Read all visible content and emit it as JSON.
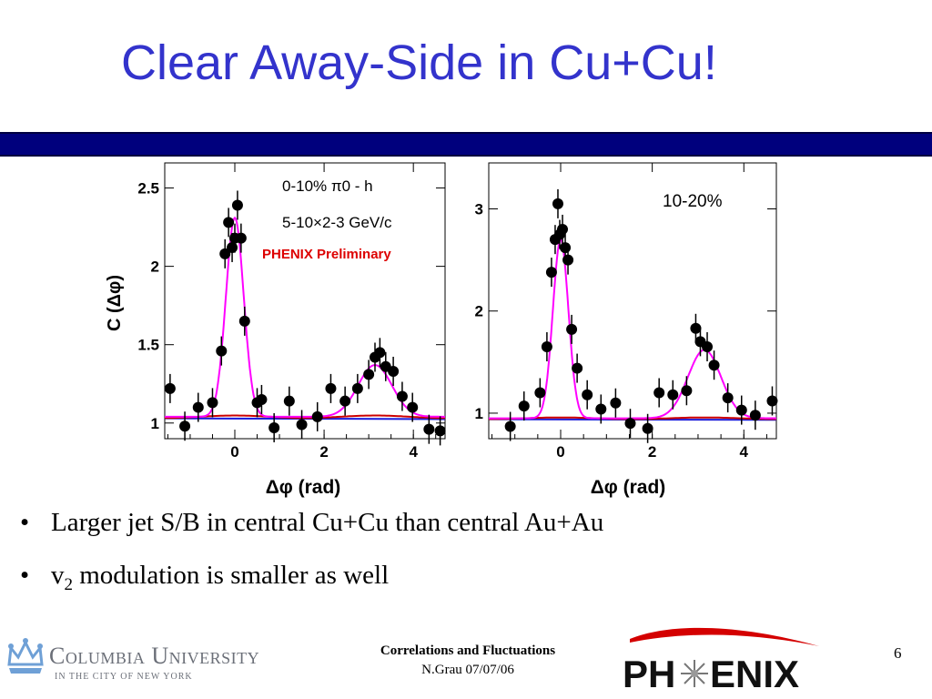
{
  "slide": {
    "title": "Clear Away-Side in Cu+Cu!",
    "bullets": [
      {
        "text": "Larger jet S/B in central Cu+Cu than central Au+Au"
      },
      {
        "text_main": "v",
        "subscript": "2",
        "text_rest": " modulation is smaller as well"
      }
    ],
    "footer": {
      "title": "Correlations and Fluctuations",
      "author_date": "N.Grau 07/07/06",
      "page_number": "6"
    },
    "logos": {
      "columbia": {
        "name_part1": "Columbia",
        "name_part2": "University",
        "tagline": "IN THE CITY OF NEW YORK"
      },
      "phenix": {
        "left": "PH",
        "right": "ENIX"
      }
    },
    "colors": {
      "title": "#3333cc",
      "bar": "#00007d",
      "fit": "#ff00ff",
      "flow": "#cc0000",
      "baseline": "#1a1ad9"
    }
  },
  "chart_data": [
    {
      "type": "scatter",
      "panel": "left",
      "annotations": [
        "0-10%  π0 - h",
        "5-10×2-3 GeV/c",
        "PHENIX Preliminary"
      ],
      "xlabel": "Δφ (rad)",
      "ylabel": "C (Δφ)",
      "xlim": [
        -1.57,
        4.71
      ],
      "ylim": [
        0.9,
        2.66
      ],
      "xticks": [
        0,
        2,
        4
      ],
      "yticks": [
        1,
        1.5,
        2,
        2.5
      ],
      "points": [
        [
          -1.45,
          1.22
        ],
        [
          -1.12,
          0.98
        ],
        [
          -0.82,
          1.1
        ],
        [
          -0.5,
          1.13
        ],
        [
          -0.3,
          1.46
        ],
        [
          -0.22,
          2.08
        ],
        [
          -0.14,
          2.28
        ],
        [
          -0.06,
          2.12
        ],
        [
          0.0,
          2.18
        ],
        [
          0.06,
          2.39
        ],
        [
          0.14,
          2.18
        ],
        [
          0.22,
          1.65
        ],
        [
          0.5,
          1.13
        ],
        [
          0.6,
          1.15
        ],
        [
          0.88,
          0.97
        ],
        [
          1.22,
          1.14
        ],
        [
          1.5,
          0.99
        ],
        [
          1.85,
          1.04
        ],
        [
          2.15,
          1.22
        ],
        [
          2.47,
          1.14
        ],
        [
          2.75,
          1.22
        ],
        [
          3.0,
          1.31
        ],
        [
          3.14,
          1.42
        ],
        [
          3.25,
          1.45
        ],
        [
          3.38,
          1.36
        ],
        [
          3.55,
          1.33
        ],
        [
          3.75,
          1.17
        ],
        [
          3.98,
          1.1
        ],
        [
          4.35,
          0.96
        ],
        [
          4.6,
          0.95
        ]
      ],
      "fit": {
        "baseline": 1.04,
        "near_amp": 1.27,
        "near_sigma": 0.2,
        "away_amp": 0.33,
        "away_sigma": 0.38,
        "away_center": 3.14
      }
    },
    {
      "type": "scatter",
      "panel": "right",
      "annotations": [
        "10-20%"
      ],
      "xlabel": "Δφ (rad)",
      "ylabel": "",
      "xlim": [
        -1.57,
        4.71
      ],
      "ylim": [
        0.75,
        3.45
      ],
      "xticks": [
        0,
        2,
        4
      ],
      "yticks": [
        1,
        2,
        3
      ],
      "points": [
        [
          -1.1,
          0.87
        ],
        [
          -0.8,
          1.07
        ],
        [
          -0.45,
          1.2
        ],
        [
          -0.3,
          1.65
        ],
        [
          -0.2,
          2.38
        ],
        [
          -0.12,
          2.7
        ],
        [
          -0.06,
          3.05
        ],
        [
          -0.02,
          2.75
        ],
        [
          0.04,
          2.8
        ],
        [
          0.1,
          2.62
        ],
        [
          0.16,
          2.5
        ],
        [
          0.24,
          1.82
        ],
        [
          0.36,
          1.44
        ],
        [
          0.58,
          1.18
        ],
        [
          0.88,
          1.04
        ],
        [
          1.2,
          1.1
        ],
        [
          1.52,
          0.9
        ],
        [
          1.9,
          0.85
        ],
        [
          2.15,
          1.2
        ],
        [
          2.45,
          1.18
        ],
        [
          2.75,
          1.22
        ],
        [
          2.95,
          1.83
        ],
        [
          3.05,
          1.7
        ],
        [
          3.2,
          1.65
        ],
        [
          3.35,
          1.47
        ],
        [
          3.65,
          1.15
        ],
        [
          3.95,
          1.03
        ],
        [
          4.25,
          0.98
        ],
        [
          4.62,
          1.12
        ]
      ],
      "fit": {
        "baseline": 0.95,
        "near_amp": 1.75,
        "near_sigma": 0.17,
        "away_amp": 0.67,
        "away_sigma": 0.36,
        "away_center": 3.14
      }
    }
  ]
}
